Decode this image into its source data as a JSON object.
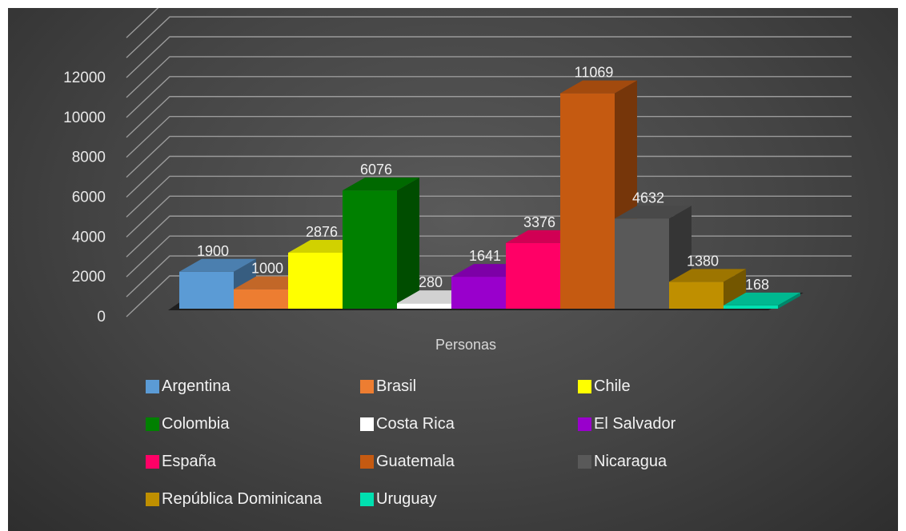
{
  "chart_data": {
    "type": "bar",
    "category": "Personas",
    "ylim": [
      0,
      12000
    ],
    "yticks": [
      "0",
      "2000",
      "4000",
      "6000",
      "8000",
      "10000",
      "12000"
    ],
    "grid": true,
    "legend_position": "bottom",
    "series": [
      {
        "name": "Argentina",
        "value": 1900,
        "color": "#5b9bd5"
      },
      {
        "name": "Brasil",
        "value": 1000,
        "color": "#ed7d31"
      },
      {
        "name": "Chile",
        "value": 2876,
        "color": "#ffff00"
      },
      {
        "name": "Colombia",
        "value": 6076,
        "color": "#008000"
      },
      {
        "name": "Costa Rica",
        "value": 280,
        "color": "#ffffff"
      },
      {
        "name": "El Salvador",
        "value": 1641,
        "color": "#9900cc"
      },
      {
        "name": "España",
        "value": 3376,
        "color": "#ff0066"
      },
      {
        "name": "Guatemala",
        "value": 11069,
        "color": "#c55a11"
      },
      {
        "name": "Nicaragua",
        "value": 4632,
        "color": "#595959"
      },
      {
        "name": "República Dominicana",
        "value": 1380,
        "color": "#bf8f00"
      },
      {
        "name": "Uruguay",
        "value": 168,
        "color": "#00e0b0"
      }
    ]
  }
}
